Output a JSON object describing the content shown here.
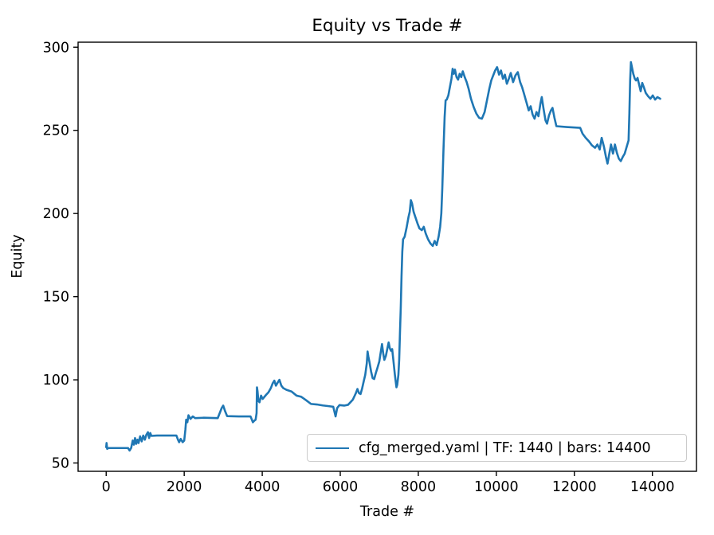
{
  "chart_data": {
    "type": "line",
    "title": "Equity vs Trade #",
    "xlabel": "Trade #",
    "ylabel": "Equity",
    "xlim": [
      -720,
      15130
    ],
    "ylim": [
      45,
      303
    ],
    "xticks": [
      0,
      2000,
      4000,
      6000,
      8000,
      10000,
      12000,
      14000
    ],
    "yticks": [
      50,
      100,
      150,
      200,
      250,
      300
    ],
    "grid": false,
    "legend_position": "lower right",
    "series": [
      {
        "name": "cfg_merged.yaml | TF: 1440 | bars: 14400",
        "color": "#1f77b4",
        "points": [
          [
            0,
            59.5
          ],
          [
            10,
            62
          ],
          [
            25,
            58.5
          ],
          [
            60,
            59
          ],
          [
            560,
            59
          ],
          [
            600,
            57.5
          ],
          [
            640,
            59
          ],
          [
            680,
            63.5
          ],
          [
            710,
            61
          ],
          [
            740,
            65
          ],
          [
            770,
            61.5
          ],
          [
            800,
            64
          ],
          [
            830,
            62
          ],
          [
            870,
            66
          ],
          [
            910,
            63
          ],
          [
            950,
            66.5
          ],
          [
            990,
            64
          ],
          [
            1030,
            67
          ],
          [
            1070,
            68.5
          ],
          [
            1100,
            65
          ],
          [
            1130,
            68
          ],
          [
            1160,
            66.3
          ],
          [
            1300,
            66.5
          ],
          [
            1500,
            66.5
          ],
          [
            1800,
            66.5
          ],
          [
            1840,
            64
          ],
          [
            1870,
            62.5
          ],
          [
            1910,
            64.5
          ],
          [
            1960,
            62.5
          ],
          [
            2000,
            63.5
          ],
          [
            2030,
            70
          ],
          [
            2050,
            76
          ],
          [
            2080,
            74.5
          ],
          [
            2110,
            78.7
          ],
          [
            2160,
            76.5
          ],
          [
            2220,
            78
          ],
          [
            2280,
            77
          ],
          [
            2500,
            77.2
          ],
          [
            2860,
            77
          ],
          [
            2910,
            80
          ],
          [
            2960,
            83
          ],
          [
            3000,
            84.5
          ],
          [
            3050,
            81
          ],
          [
            3100,
            78.2
          ],
          [
            3400,
            78
          ],
          [
            3700,
            78
          ],
          [
            3760,
            74.5
          ],
          [
            3800,
            75.5
          ],
          [
            3830,
            76
          ],
          [
            3855,
            80
          ],
          [
            3865,
            95.5
          ],
          [
            3880,
            93
          ],
          [
            3900,
            87.5
          ],
          [
            3930,
            86.5
          ],
          [
            3970,
            90.5
          ],
          [
            4010,
            88.5
          ],
          [
            4100,
            91
          ],
          [
            4160,
            92.5
          ],
          [
            4220,
            95
          ],
          [
            4270,
            98
          ],
          [
            4310,
            99.5
          ],
          [
            4350,
            96.5
          ],
          [
            4400,
            98.5
          ],
          [
            4440,
            100
          ],
          [
            4490,
            96.5
          ],
          [
            4540,
            95
          ],
          [
            4620,
            94
          ],
          [
            4750,
            93
          ],
          [
            4880,
            90.5
          ],
          [
            5000,
            89.8
          ],
          [
            5120,
            87.8
          ],
          [
            5250,
            85.5
          ],
          [
            5400,
            85.2
          ],
          [
            5550,
            84.6
          ],
          [
            5700,
            84.2
          ],
          [
            5820,
            83.8
          ],
          [
            5880,
            78
          ],
          [
            5920,
            83
          ],
          [
            5980,
            84.8
          ],
          [
            6100,
            84.5
          ],
          [
            6200,
            85
          ],
          [
            6260,
            86.5
          ],
          [
            6320,
            88
          ],
          [
            6360,
            90
          ],
          [
            6400,
            92
          ],
          [
            6440,
            94.5
          ],
          [
            6480,
            92
          ],
          [
            6520,
            91.5
          ],
          [
            6560,
            94.8
          ],
          [
            6600,
            99
          ],
          [
            6640,
            103
          ],
          [
            6680,
            110
          ],
          [
            6700,
            117
          ],
          [
            6720,
            114
          ],
          [
            6750,
            110.5
          ],
          [
            6790,
            105
          ],
          [
            6830,
            101
          ],
          [
            6870,
            100.5
          ],
          [
            6910,
            104
          ],
          [
            6950,
            107
          ],
          [
            7000,
            111
          ],
          [
            7040,
            117
          ],
          [
            7070,
            121.5
          ],
          [
            7100,
            116
          ],
          [
            7130,
            112
          ],
          [
            7170,
            114.5
          ],
          [
            7200,
            118
          ],
          [
            7240,
            122.5
          ],
          [
            7270,
            119
          ],
          [
            7300,
            117.5
          ],
          [
            7330,
            118.5
          ],
          [
            7360,
            112
          ],
          [
            7400,
            103
          ],
          [
            7440,
            95.5
          ],
          [
            7460,
            97
          ],
          [
            7490,
            103
          ],
          [
            7510,
            112
          ],
          [
            7530,
            128
          ],
          [
            7550,
            143
          ],
          [
            7570,
            162
          ],
          [
            7590,
            177
          ],
          [
            7610,
            184.5
          ],
          [
            7650,
            186
          ],
          [
            7700,
            191.5
          ],
          [
            7750,
            198
          ],
          [
            7780,
            201
          ],
          [
            7810,
            208
          ],
          [
            7840,
            206
          ],
          [
            7880,
            201
          ],
          [
            7930,
            197.5
          ],
          [
            7980,
            194
          ],
          [
            8030,
            191
          ],
          [
            8090,
            190
          ],
          [
            8140,
            192
          ],
          [
            8190,
            188
          ],
          [
            8250,
            184.5
          ],
          [
            8310,
            182
          ],
          [
            8370,
            180.5
          ],
          [
            8420,
            183.5
          ],
          [
            8470,
            181
          ],
          [
            8520,
            186
          ],
          [
            8560,
            192
          ],
          [
            8590,
            200
          ],
          [
            8615,
            215
          ],
          [
            8645,
            238
          ],
          [
            8675,
            258
          ],
          [
            8700,
            268
          ],
          [
            8730,
            268.5
          ],
          [
            8770,
            271
          ],
          [
            8810,
            276
          ],
          [
            8850,
            281
          ],
          [
            8880,
            287
          ],
          [
            8910,
            284
          ],
          [
            8940,
            286.5
          ],
          [
            8980,
            282
          ],
          [
            9020,
            280.5
          ],
          [
            9060,
            284
          ],
          [
            9100,
            282
          ],
          [
            9140,
            285.5
          ],
          [
            9190,
            282
          ],
          [
            9240,
            279
          ],
          [
            9290,
            275
          ],
          [
            9350,
            269
          ],
          [
            9420,
            264
          ],
          [
            9490,
            260
          ],
          [
            9560,
            257.5
          ],
          [
            9630,
            257
          ],
          [
            9700,
            261
          ],
          [
            9760,
            268
          ],
          [
            9820,
            275
          ],
          [
            9870,
            280
          ],
          [
            9920,
            283
          ],
          [
            9970,
            286
          ],
          [
            10020,
            288
          ],
          [
            10070,
            283.5
          ],
          [
            10120,
            286
          ],
          [
            10170,
            281
          ],
          [
            10220,
            283.5
          ],
          [
            10270,
            278
          ],
          [
            10320,
            281
          ],
          [
            10370,
            284.5
          ],
          [
            10430,
            279
          ],
          [
            10490,
            283
          ],
          [
            10550,
            285
          ],
          [
            10610,
            279
          ],
          [
            10660,
            276
          ],
          [
            10710,
            272
          ],
          [
            10770,
            267
          ],
          [
            10830,
            262
          ],
          [
            10880,
            264.5
          ],
          [
            10930,
            259.5
          ],
          [
            10980,
            257
          ],
          [
            11030,
            261
          ],
          [
            11080,
            258.5
          ],
          [
            11130,
            266
          ],
          [
            11165,
            270
          ],
          [
            11210,
            263
          ],
          [
            11260,
            256
          ],
          [
            11300,
            254
          ],
          [
            11350,
            259
          ],
          [
            11400,
            262
          ],
          [
            11440,
            263.5
          ],
          [
            11490,
            257.5
          ],
          [
            11540,
            252.5
          ],
          [
            11800,
            252
          ],
          [
            12150,
            251.5
          ],
          [
            12210,
            248
          ],
          [
            12290,
            245.5
          ],
          [
            12370,
            243.5
          ],
          [
            12450,
            241
          ],
          [
            12530,
            239.5
          ],
          [
            12590,
            241.5
          ],
          [
            12650,
            238.5
          ],
          [
            12700,
            245.5
          ],
          [
            12760,
            240
          ],
          [
            12810,
            234
          ],
          [
            12850,
            230
          ],
          [
            12900,
            236.5
          ],
          [
            12940,
            241.5
          ],
          [
            12990,
            236
          ],
          [
            13040,
            241.5
          ],
          [
            13090,
            236.5
          ],
          [
            13140,
            233
          ],
          [
            13190,
            231.5
          ],
          [
            13240,
            234
          ],
          [
            13290,
            236
          ],
          [
            13340,
            240
          ],
          [
            13390,
            244
          ],
          [
            13410,
            260
          ],
          [
            13430,
            280
          ],
          [
            13450,
            291
          ],
          [
            13480,
            287.5
          ],
          [
            13510,
            284
          ],
          [
            13550,
            281
          ],
          [
            13580,
            280
          ],
          [
            13620,
            281.5
          ],
          [
            13660,
            277.5
          ],
          [
            13700,
            273.5
          ],
          [
            13740,
            278.5
          ],
          [
            13780,
            276
          ],
          [
            13830,
            272.5
          ],
          [
            13890,
            270.5
          ],
          [
            13950,
            269
          ],
          [
            14010,
            271
          ],
          [
            14070,
            268.5
          ],
          [
            14130,
            270
          ],
          [
            14200,
            269
          ]
        ]
      }
    ]
  },
  "legend": {
    "label": "cfg_merged.yaml | TF: 1440 | bars: 14400"
  },
  "colors": {
    "line": "#1f77b4",
    "axis": "#000000",
    "legend_border": "#cbcbcb",
    "background": "#ffffff"
  }
}
